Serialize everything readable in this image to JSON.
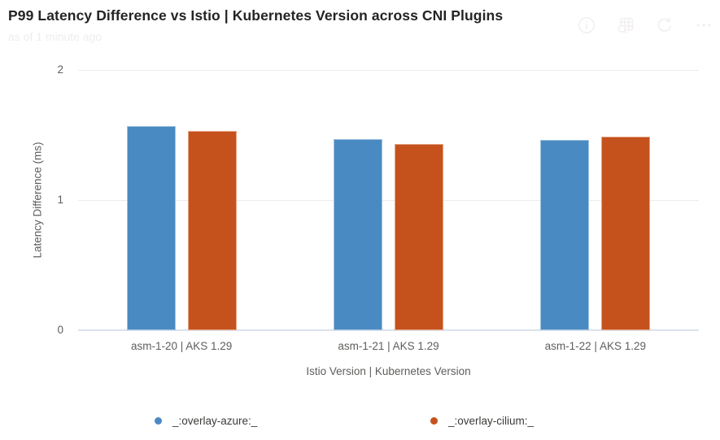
{
  "header": {
    "title": "P99 Latency Difference vs Istio | Kubernetes Version across CNI Plugins",
    "subtitle": "as of 1 minute ago",
    "actions": {
      "info_label": "info",
      "explore_label": "explore-data",
      "refresh_label": "refresh",
      "more_label": "more-options"
    }
  },
  "chart_data": {
    "type": "bar",
    "title": "P99 Latency Difference vs Istio | Kubernetes Version across CNI Plugins",
    "categories": [
      "asm-1-20 | AKS 1.29",
      "asm-1-21 | AKS 1.29",
      "asm-1-22 | AKS 1.29"
    ],
    "series": [
      {
        "name": "_:overlay-azure:_",
        "color": "#4A8AC2",
        "edge_color": "#9FC2E0",
        "values": [
          1.57,
          1.47,
          1.46
        ]
      },
      {
        "name": "_:overlay-cilium:_",
        "color": "#C5521D",
        "edge_color": "#E5A583",
        "values": [
          1.53,
          1.43,
          1.49
        ]
      }
    ],
    "xlabel": "Istio Version | Kubernetes Version",
    "ylabel": "Latency Difference (ms)",
    "ylim": [
      0,
      2
    ],
    "yticks": [
      0,
      1,
      2
    ],
    "grid": true,
    "legend_position": "bottom"
  },
  "colors": {
    "title_text": "#252423",
    "axis_text": "#605e5c",
    "legend_text": "#3a3a38",
    "gridline": "#ececec",
    "baseline": "#dbe2ee",
    "faint_icon": "#f2f0ef",
    "background": "#ffffff"
  }
}
